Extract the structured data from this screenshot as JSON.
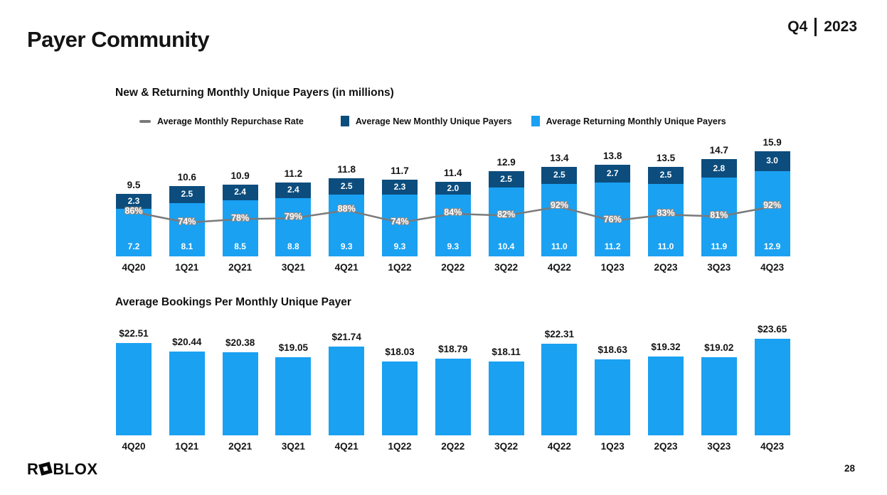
{
  "slide": {
    "title": "Payer Community",
    "quarter": "Q4",
    "year": "2023",
    "page_number": "28",
    "logo": {
      "prefix": "R",
      "suffix": "BLOX"
    }
  },
  "colors": {
    "returning_blue": "#1AA1F2",
    "new_navy": "#0C4D7D",
    "line_gray": "#7A7A7A",
    "text": "#141414"
  },
  "chart_data": [
    {
      "type": "bar",
      "variant": "stacked-with-line-overlay",
      "title": "New & Returning Monthly Unique Payers (in millions)",
      "categories": [
        "4Q20",
        "1Q21",
        "2Q21",
        "3Q21",
        "4Q21",
        "1Q22",
        "2Q22",
        "3Q22",
        "4Q22",
        "1Q23",
        "2Q23",
        "3Q23",
        "4Q23"
      ],
      "series": [
        {
          "name": "Average Returning Monthly Unique Payers",
          "color": "#1AA1F2",
          "values": [
            7.2,
            8.1,
            8.5,
            8.8,
            9.3,
            9.3,
            9.3,
            10.4,
            11.0,
            11.2,
            11.0,
            11.9,
            12.9
          ]
        },
        {
          "name": "Average New Monthly Unique Payers",
          "color": "#0C4D7D",
          "values": [
            2.3,
            2.5,
            2.4,
            2.4,
            2.5,
            2.3,
            2.0,
            2.5,
            2.5,
            2.7,
            2.5,
            2.8,
            3.0
          ]
        }
      ],
      "totals": [
        9.5,
        10.6,
        10.9,
        11.2,
        11.8,
        11.7,
        11.4,
        12.9,
        13.4,
        13.8,
        13.5,
        14.7,
        15.9
      ],
      "line": {
        "name": "Average Monthly Repurchase Rate",
        "color": "#7A7A7A",
        "values_pct": [
          86,
          74,
          78,
          79,
          88,
          74,
          84,
          82,
          92,
          76,
          83,
          81,
          92
        ]
      },
      "legend": [
        {
          "label": "Average Monthly Repurchase Rate",
          "marker": "line",
          "color": "#7A7A7A"
        },
        {
          "label": "Average New Monthly Unique Payers",
          "marker": "square",
          "color": "#0C4D7D"
        },
        {
          "label": "Average Returning Monthly Unique Payers",
          "marker": "square",
          "color": "#1AA1F2"
        }
      ],
      "grid": false,
      "legend_position": "top"
    },
    {
      "type": "bar",
      "title": "Average Bookings Per Monthly Unique Payer",
      "categories": [
        "4Q20",
        "1Q21",
        "2Q21",
        "3Q21",
        "4Q21",
        "1Q22",
        "2Q22",
        "3Q22",
        "4Q22",
        "1Q23",
        "2Q23",
        "3Q23",
        "4Q23"
      ],
      "values": [
        22.51,
        20.44,
        20.38,
        19.05,
        21.74,
        18.03,
        18.79,
        18.11,
        22.31,
        18.63,
        19.32,
        19.02,
        23.65
      ],
      "value_labels": [
        "$22.51",
        "$20.44",
        "$20.38",
        "$19.05",
        "$21.74",
        "$18.03",
        "$18.79",
        "$18.11",
        "$22.31",
        "$18.63",
        "$19.32",
        "$19.02",
        "$23.65"
      ],
      "color": "#1AA1F2",
      "grid": false,
      "legend_position": "none"
    }
  ]
}
